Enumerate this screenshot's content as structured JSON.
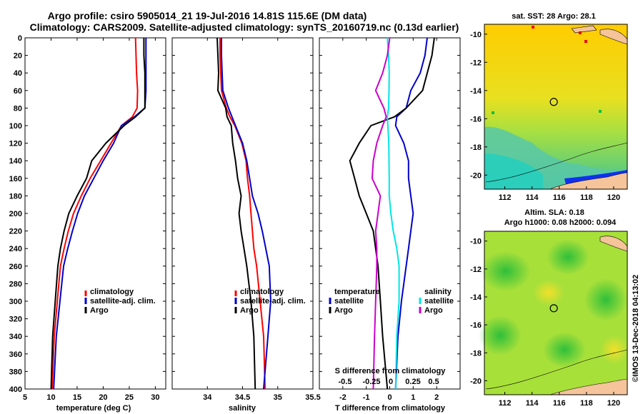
{
  "title_line1": "Argo profile: csiro 5905014_21 19-Jul-2016 14.81S 115.6E (DM data)",
  "title_line2": "Climatology: CARS2009. Satellite-adjusted climatology: synTS_20160719.nc (0.13d earlier)",
  "watermark": "©IMOS 13-Dec-2018 04:13:02",
  "colors": {
    "climatology": "#ff0000",
    "satellite": "#0000cc",
    "argo": "#000000",
    "sat_s": "#00e5e5",
    "argo_s": "#cc00cc"
  },
  "y_ticks": [
    0,
    20,
    40,
    60,
    80,
    100,
    120,
    140,
    160,
    180,
    200,
    220,
    240,
    260,
    280,
    300,
    320,
    340,
    360,
    380,
    400
  ],
  "chart_data": [
    {
      "type": "line",
      "name": "temperature",
      "xlabel": "temperature (deg C)",
      "ylabel": "depth",
      "xlim": [
        5,
        32
      ],
      "ylim": [
        400,
        0
      ],
      "x_ticks": [
        5,
        10,
        15,
        20,
        25,
        30
      ],
      "legend": [
        "climatology",
        "satellite-adj. clim.",
        "Argo"
      ],
      "series": [
        {
          "name": "climatology",
          "color": "#ff0000",
          "x": [
            26.2,
            26.3,
            26.4,
            26.6,
            26.5,
            25.6,
            23.5,
            21.5,
            19.5,
            17.5,
            15.8,
            14.3,
            13.3,
            12.5,
            11.8,
            11.2,
            10.6,
            10.2
          ],
          "y": [
            0,
            20,
            40,
            60,
            80,
            90,
            100,
            120,
            140,
            160,
            180,
            200,
            220,
            240,
            260,
            300,
            340,
            400
          ]
        },
        {
          "name": "satellite-adj. clim.",
          "color": "#0000cc",
          "x": [
            28.2,
            28.2,
            28.2,
            28.2,
            28.0,
            26.0,
            23.5,
            22.0,
            20.0,
            18.2,
            16.4,
            15.1,
            14.1,
            13.2,
            12.4,
            11.7,
            11.0,
            10.5
          ],
          "y": [
            0,
            20,
            40,
            60,
            80,
            90,
            100,
            120,
            140,
            160,
            180,
            200,
            220,
            240,
            260,
            300,
            340,
            400
          ]
        },
        {
          "name": "Argo",
          "color": "#000000",
          "x": [
            27.8,
            27.8,
            28.0,
            28.0,
            28.0,
            26.2,
            24.0,
            20.5,
            17.8,
            16.8,
            15.0,
            13.4,
            12.5,
            11.8,
            11.3,
            10.8,
            10.3,
            10.0
          ],
          "y": [
            0,
            20,
            40,
            60,
            80,
            90,
            100,
            120,
            140,
            160,
            180,
            200,
            220,
            240,
            260,
            300,
            340,
            400
          ]
        }
      ]
    },
    {
      "type": "line",
      "name": "salinity",
      "xlabel": "salinity",
      "xlim": [
        33.5,
        35.5
      ],
      "ylim": [
        400,
        0
      ],
      "x_ticks": [
        34,
        34.5,
        35,
        35.5
      ],
      "legend": [
        "climatology",
        "satellite-adj. clim.",
        "Argo"
      ],
      "series": [
        {
          "name": "climatology",
          "color": "#ff0000",
          "x": [
            34.18,
            34.18,
            34.19,
            34.2,
            34.27,
            34.32,
            34.39,
            34.49,
            34.55,
            34.57,
            34.6,
            34.62,
            34.64,
            34.66,
            34.7,
            34.75,
            34.8,
            34.82
          ],
          "y": [
            0,
            20,
            40,
            60,
            80,
            90,
            100,
            120,
            140,
            160,
            180,
            200,
            220,
            240,
            260,
            300,
            340,
            400
          ]
        },
        {
          "name": "satellite-adj. clim.",
          "color": "#0000cc",
          "x": [
            34.2,
            34.2,
            34.21,
            34.22,
            34.3,
            34.35,
            34.4,
            34.5,
            34.56,
            34.6,
            34.64,
            34.72,
            34.78,
            34.83,
            34.88,
            34.9,
            34.86,
            34.8
          ],
          "y": [
            0,
            20,
            40,
            60,
            80,
            90,
            100,
            120,
            140,
            160,
            180,
            200,
            220,
            240,
            260,
            300,
            340,
            400
          ]
        },
        {
          "name": "Argo",
          "color": "#000000",
          "x": [
            34.14,
            34.15,
            34.16,
            34.15,
            34.26,
            34.28,
            34.34,
            34.36,
            34.4,
            34.43,
            34.48,
            34.45,
            34.48,
            34.52,
            34.56,
            34.62,
            34.66,
            34.68
          ],
          "y": [
            0,
            20,
            40,
            60,
            80,
            90,
            100,
            120,
            140,
            160,
            180,
            200,
            220,
            240,
            260,
            300,
            340,
            400
          ]
        }
      ]
    },
    {
      "type": "line",
      "name": "difference",
      "xlabel": "T difference from climatology",
      "x2label": "S difference from climatology",
      "xlim": [
        -3,
        3
      ],
      "ylim": [
        400,
        0
      ],
      "x_ticks": [
        -2,
        -1,
        0,
        1,
        2
      ],
      "s_ticks": [
        "-0.5",
        "-0.25",
        "0",
        "0.25",
        "0.5"
      ],
      "legend_left_title": "temperature",
      "legend_right_title": "salinity",
      "legend_left": [
        "satellite",
        "Argo"
      ],
      "legend_right": [
        "satellite",
        "Argo"
      ],
      "series": [
        {
          "name": "T satellite",
          "color": "#0000cc",
          "x": [
            1.6,
            1.5,
            1.3,
            0.9,
            0.7,
            0.3,
            0.25,
            0.6,
            0.8,
            0.8,
            0.9,
            1.0,
            0.9,
            0.8,
            0.7,
            0.5,
            0.35,
            0.25
          ],
          "y": [
            0,
            20,
            40,
            60,
            80,
            90,
            100,
            120,
            140,
            160,
            180,
            200,
            220,
            240,
            260,
            300,
            340,
            400
          ]
        },
        {
          "name": "T Argo",
          "color": "#000000",
          "x": [
            1.9,
            1.8,
            1.6,
            1.4,
            0.7,
            0.2,
            -0.8,
            -1.3,
            -1.7,
            -1.5,
            -1.3,
            -1.0,
            -0.7,
            -0.6,
            -0.5,
            -0.4,
            -0.3,
            -0.1
          ],
          "y": [
            0,
            20,
            40,
            60,
            80,
            90,
            100,
            120,
            140,
            160,
            180,
            200,
            220,
            240,
            260,
            300,
            340,
            400
          ]
        },
        {
          "name": "S satellite",
          "color": "#00e5e5",
          "x": [
            -0.1,
            -0.05,
            -0.02,
            -0.03,
            -0.05,
            -0.1,
            -0.08,
            -0.04,
            -0.03,
            -0.02,
            -0.02,
            0.05,
            0.15,
            0.3,
            0.4,
            0.4,
            0.3,
            0.25
          ],
          "y": [
            0,
            20,
            40,
            60,
            80,
            90,
            100,
            120,
            140,
            160,
            180,
            200,
            220,
            240,
            260,
            300,
            340,
            400
          ]
        },
        {
          "name": "S Argo",
          "color": "#cc00cc",
          "x": [
            0.0,
            -0.1,
            -0.3,
            -0.6,
            -0.25,
            -0.15,
            -0.3,
            -0.55,
            -0.7,
            -0.75,
            -0.4,
            -0.5,
            -0.6,
            -0.55,
            -0.55,
            -0.6,
            -0.65,
            -0.7
          ],
          "y": [
            0,
            20,
            40,
            60,
            80,
            90,
            100,
            120,
            140,
            160,
            180,
            200,
            220,
            240,
            260,
            300,
            340,
            400
          ]
        }
      ]
    },
    {
      "type": "heatmap",
      "name": "sst-map",
      "title": "sat. SST: 28 Argo: 28.1",
      "x_ticks": [
        112,
        114,
        116,
        118,
        120
      ],
      "y_ticks": [
        -10,
        -12,
        -14,
        -16,
        -18,
        -20
      ],
      "xlim": [
        110.5,
        121
      ],
      "ylim": [
        -21,
        -9.3
      ],
      "argo_position": {
        "lon": 115.6,
        "lat": -14.81
      }
    },
    {
      "type": "heatmap",
      "name": "sla-map",
      "title": "Altim. SLA: 0.18",
      "subtitle": "Argo h1000: 0.08 h2000: 0.094",
      "x_ticks": [
        112,
        114,
        116,
        118,
        120
      ],
      "y_ticks": [
        -10,
        -12,
        -14,
        -16,
        -18,
        -20
      ],
      "xlim": [
        110.5,
        121
      ],
      "ylim": [
        -21,
        -9.3
      ],
      "argo_position": {
        "lon": 115.6,
        "lat": -14.81
      }
    }
  ]
}
